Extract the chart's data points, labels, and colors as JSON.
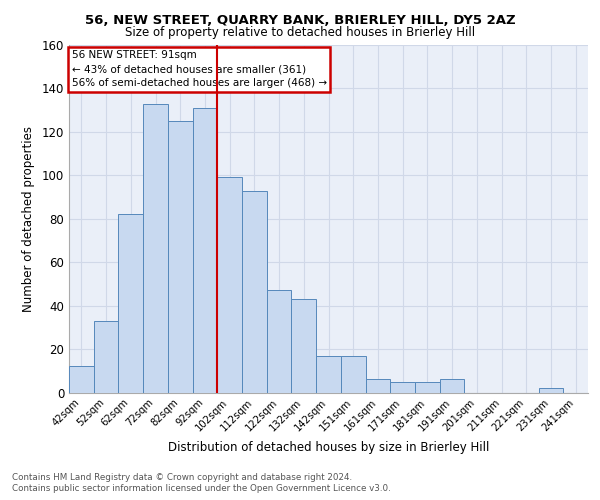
{
  "title1": "56, NEW STREET, QUARRY BANK, BRIERLEY HILL, DY5 2AZ",
  "title2": "Size of property relative to detached houses in Brierley Hill",
  "xlabel": "Distribution of detached houses by size in Brierley Hill",
  "ylabel": "Number of detached properties",
  "footer1": "Contains HM Land Registry data © Crown copyright and database right 2024.",
  "footer2": "Contains public sector information licensed under the Open Government Licence v3.0.",
  "bar_labels": [
    "42sqm",
    "52sqm",
    "62sqm",
    "72sqm",
    "82sqm",
    "92sqm",
    "102sqm",
    "112sqm",
    "122sqm",
    "132sqm",
    "142sqm",
    "151sqm",
    "161sqm",
    "171sqm",
    "181sqm",
    "191sqm",
    "201sqm",
    "211sqm",
    "221sqm",
    "231sqm",
    "241sqm"
  ],
  "bar_values": [
    12,
    33,
    82,
    133,
    125,
    131,
    99,
    93,
    47,
    43,
    17,
    17,
    6,
    5,
    5,
    6,
    0,
    0,
    0,
    2,
    0
  ],
  "bar_color": "#c8d9f0",
  "bar_edge_color": "#5588bb",
  "ref_line_color": "#cc0000",
  "ref_line_label": "56 NEW STREET: 91sqm",
  "annotation_line1": "← 43% of detached houses are smaller (361)",
  "annotation_line2": "56% of semi-detached houses are larger (468) →",
  "annotation_box_color": "#cc0000",
  "ylim": [
    0,
    160
  ],
  "yticks": [
    0,
    20,
    40,
    60,
    80,
    100,
    120,
    140,
    160
  ],
  "grid_color": "#d0d8e8",
  "bg_color": "#eaeff8"
}
